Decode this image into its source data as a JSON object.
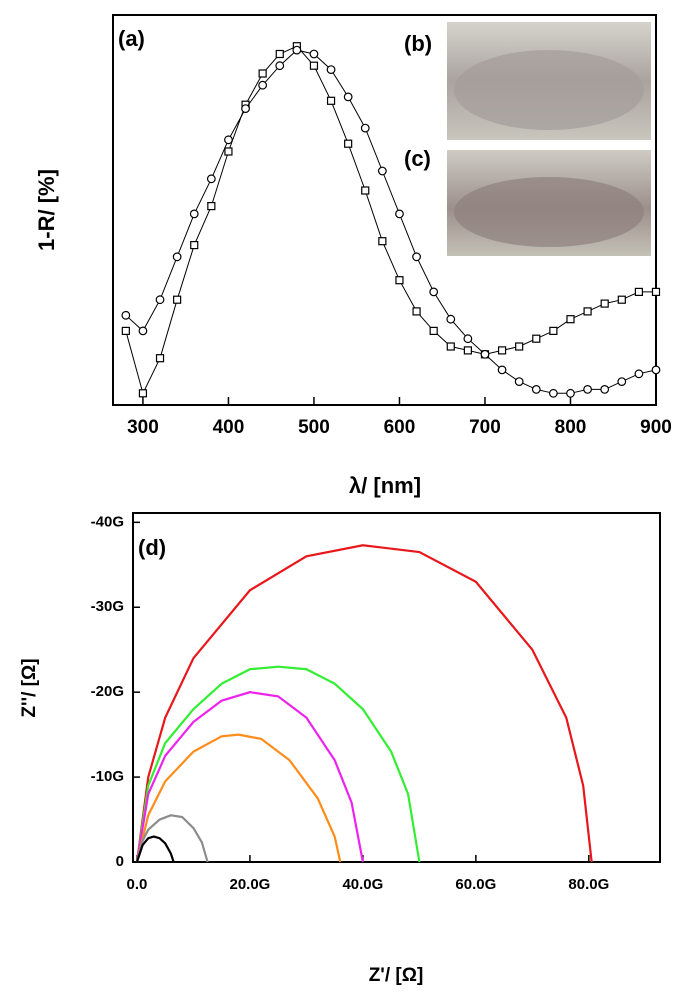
{
  "chart_data": [
    {
      "type": "scatter",
      "xlabel": "λ/ [nm]",
      "ylabel": "1-R/ [%]",
      "annotations": [
        "(a)",
        "(b)",
        "(c)"
      ],
      "xlim": [
        265,
        900
      ],
      "ylim": [
        0,
        100
      ],
      "xticks": [
        300,
        400,
        500,
        600,
        700,
        800,
        900
      ],
      "x": [
        280,
        300,
        320,
        340,
        360,
        380,
        400,
        420,
        440,
        460,
        480,
        500,
        520,
        540,
        560,
        580,
        600,
        620,
        640,
        660,
        680,
        700,
        720,
        740,
        760,
        780,
        800,
        820,
        840,
        860,
        880,
        900
      ],
      "series": [
        {
          "marker": "square",
          "color": "#000000",
          "values": [
            19,
            3,
            12,
            27,
            41,
            51,
            65,
            77,
            85,
            90,
            92,
            87,
            78,
            67,
            55,
            42,
            32,
            24,
            19,
            15,
            14,
            13,
            14,
            15,
            17,
            19,
            22,
            24,
            26,
            27,
            29,
            29
          ]
        },
        {
          "marker": "circle",
          "color": "#000000",
          "values": [
            23,
            19,
            27,
            38,
            49,
            58,
            68,
            76,
            82,
            87,
            91,
            90,
            86,
            79,
            71,
            60,
            49,
            38,
            29,
            22,
            17,
            13,
            9,
            6,
            4,
            3,
            3,
            4,
            4,
            6,
            8,
            9
          ]
        }
      ]
    },
    {
      "type": "line",
      "xlabel": "Z'/ [Ω]",
      "ylabel": "Z''/ [Ω]",
      "annotations": [
        "(d)"
      ],
      "xlim": [
        -0.7,
        92.6
      ],
      "ylim": [
        0,
        -41.1
      ],
      "xticks": [
        {
          "value": 0,
          "label": "0.0"
        },
        {
          "value": 20,
          "label": "20.0G"
        },
        {
          "value": 40,
          "label": "40.0G"
        },
        {
          "value": 60,
          "label": "60.0G"
        },
        {
          "value": 80,
          "label": "80.0G"
        }
      ],
      "yticks": [
        0,
        {
          "value": -10,
          "label": "-10G"
        },
        {
          "value": -20,
          "label": "-20G"
        },
        {
          "value": -30,
          "label": "-30G"
        },
        {
          "value": -40,
          "label": "-40G"
        }
      ],
      "series": [
        {
          "color": "#e8171b",
          "x": [
            0,
            2,
            5,
            10,
            20,
            30,
            40,
            50,
            60,
            70,
            76,
            79,
            80.5
          ],
          "values": [
            0,
            -10,
            -17,
            -24,
            -32,
            -36,
            -37.3,
            -36.5,
            -33,
            -25,
            -17,
            -9,
            0
          ]
        },
        {
          "color": "#33ee33",
          "x": [
            0,
            2,
            5,
            10,
            15,
            20,
            25,
            30,
            35,
            40,
            45,
            48,
            50
          ],
          "values": [
            0,
            -9,
            -14,
            -18,
            -21,
            -22.7,
            -23,
            -22.7,
            -21,
            -18,
            -13,
            -8,
            0
          ]
        },
        {
          "color": "#ee22ee",
          "x": [
            0,
            2,
            5,
            10,
            15,
            20,
            25,
            30,
            35,
            38,
            40
          ],
          "values": [
            0,
            -8,
            -12.5,
            -16.5,
            -19,
            -20,
            -19.5,
            -17,
            -12,
            -7,
            0
          ]
        },
        {
          "color": "#ff8c1a",
          "x": [
            0,
            2,
            5,
            10,
            15,
            18,
            22,
            27,
            32,
            35,
            36
          ],
          "values": [
            0,
            -5.5,
            -9.5,
            -13,
            -14.8,
            -15,
            -14.5,
            -12,
            -7.5,
            -3,
            0
          ]
        },
        {
          "color": "#8c8c8c",
          "x": [
            0,
            1,
            2,
            4,
            6,
            8,
            10,
            11.5,
            12.5
          ],
          "values": [
            0,
            -2.5,
            -3.8,
            -5,
            -5.5,
            -5.3,
            -4,
            -2.3,
            0
          ]
        },
        {
          "color": "#000000",
          "x": [
            0,
            1,
            2,
            3,
            4,
            5,
            6,
            6.5
          ],
          "values": [
            0,
            -2,
            -2.8,
            -3,
            -2.8,
            -2.2,
            -1,
            0
          ]
        }
      ]
    }
  ]
}
